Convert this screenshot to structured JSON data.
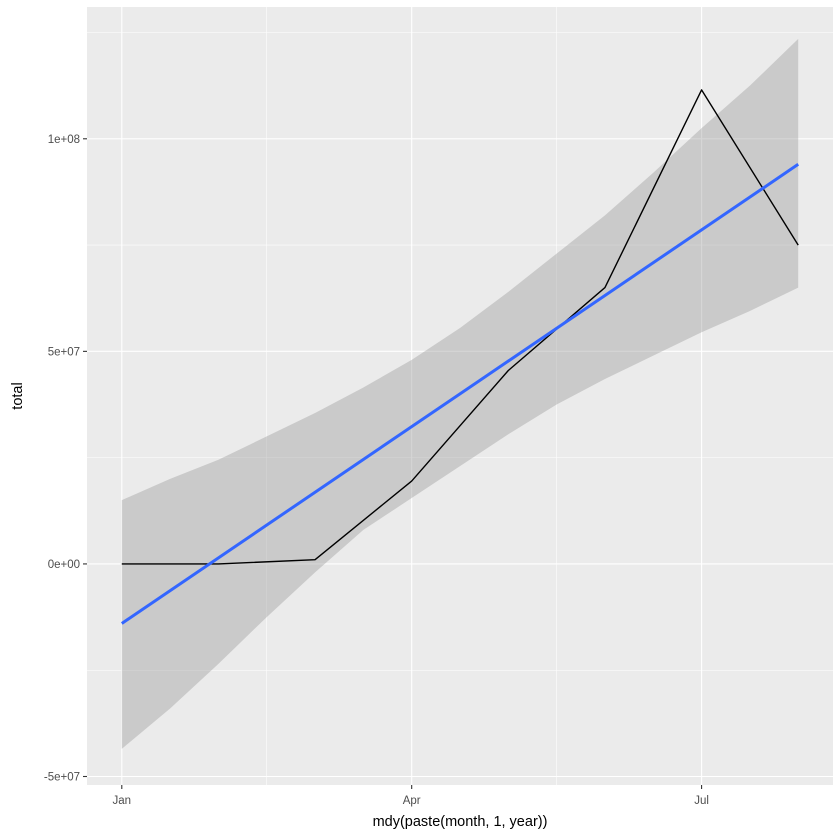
{
  "chart_data": {
    "type": "line",
    "xlabel": "mdy(paste(month, 1, year))",
    "ylabel": "total",
    "x_ticks": [
      "Jan",
      "Apr",
      "Jul"
    ],
    "y_ticks": [
      "-5e+07",
      "0e+00",
      "5e+07",
      "1e+08"
    ],
    "x_tick_values": [
      0,
      3,
      6
    ],
    "y_tick_values": [
      -50000000,
      0,
      50000000,
      100000000
    ],
    "xlim": [
      -0.36,
      7.36
    ],
    "ylim": [
      -52000000,
      131000000
    ],
    "grid": true,
    "series": [
      {
        "x": [
          0,
          1,
          2,
          3,
          4,
          5,
          6,
          7
        ],
        "values": [
          0,
          0,
          1000000,
          19500000,
          45500000,
          65000000,
          111500000,
          75000000
        ]
      }
    ],
    "fit": {
      "method": "linear",
      "x": [
        0,
        7
      ],
      "values": [
        -14000000,
        94000000
      ]
    },
    "confidence_band": {
      "x": [
        0,
        0.5,
        1,
        1.5,
        2,
        2.5,
        3,
        3.5,
        4,
        4.5,
        5,
        5.5,
        6,
        6.5,
        7
      ],
      "lower": [
        -43500000,
        -34000000,
        -23500000,
        -12500000,
        -2000000,
        8000000,
        15500000,
        23000000,
        30500000,
        37500000,
        43500000,
        49000000,
        54500000,
        59500000,
        65000000
      ],
      "upper": [
        15000000,
        20000000,
        24500000,
        30000000,
        35500000,
        41500000,
        48000000,
        55500000,
        64000000,
        73000000,
        82000000,
        92000000,
        102500000,
        112500000,
        123500000
      ]
    },
    "colors": {
      "panel": "#EBEBEB",
      "grid": "#FFFFFF",
      "line": "#000000",
      "fit": "#3366FF",
      "band": "#999999",
      "band_opacity": 0.4
    }
  }
}
